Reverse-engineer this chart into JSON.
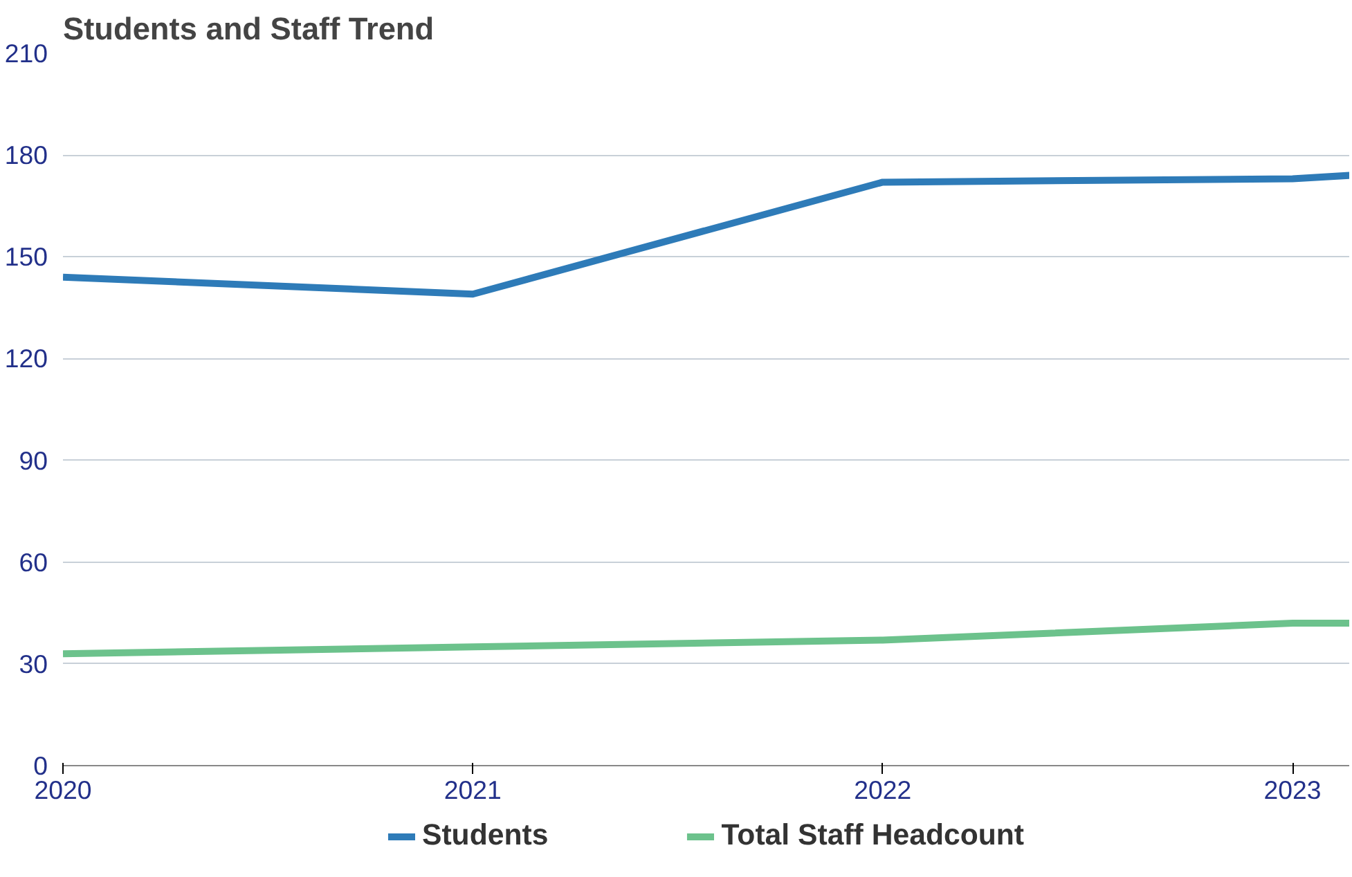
{
  "chart_data": {
    "type": "line",
    "title": "Students and Staff Trend",
    "x": [
      2020,
      2021,
      2022,
      2023,
      2023.14
    ],
    "series": [
      {
        "name": "Students",
        "color": "#2e7bb8",
        "values": [
          144,
          139,
          172,
          173,
          174
        ]
      },
      {
        "name": "Total Staff Headcount",
        "color": "#6cc28c",
        "values": [
          33,
          35,
          37,
          42,
          42
        ]
      }
    ],
    "xlim": [
      2020,
      2023.14
    ],
    "xticks": [
      2020,
      2021,
      2022,
      2023
    ],
    "ylim": [
      0,
      210
    ],
    "yticks": [
      0,
      30,
      60,
      90,
      120,
      150,
      180,
      210
    ],
    "grid": "y",
    "legend": "bottom"
  }
}
